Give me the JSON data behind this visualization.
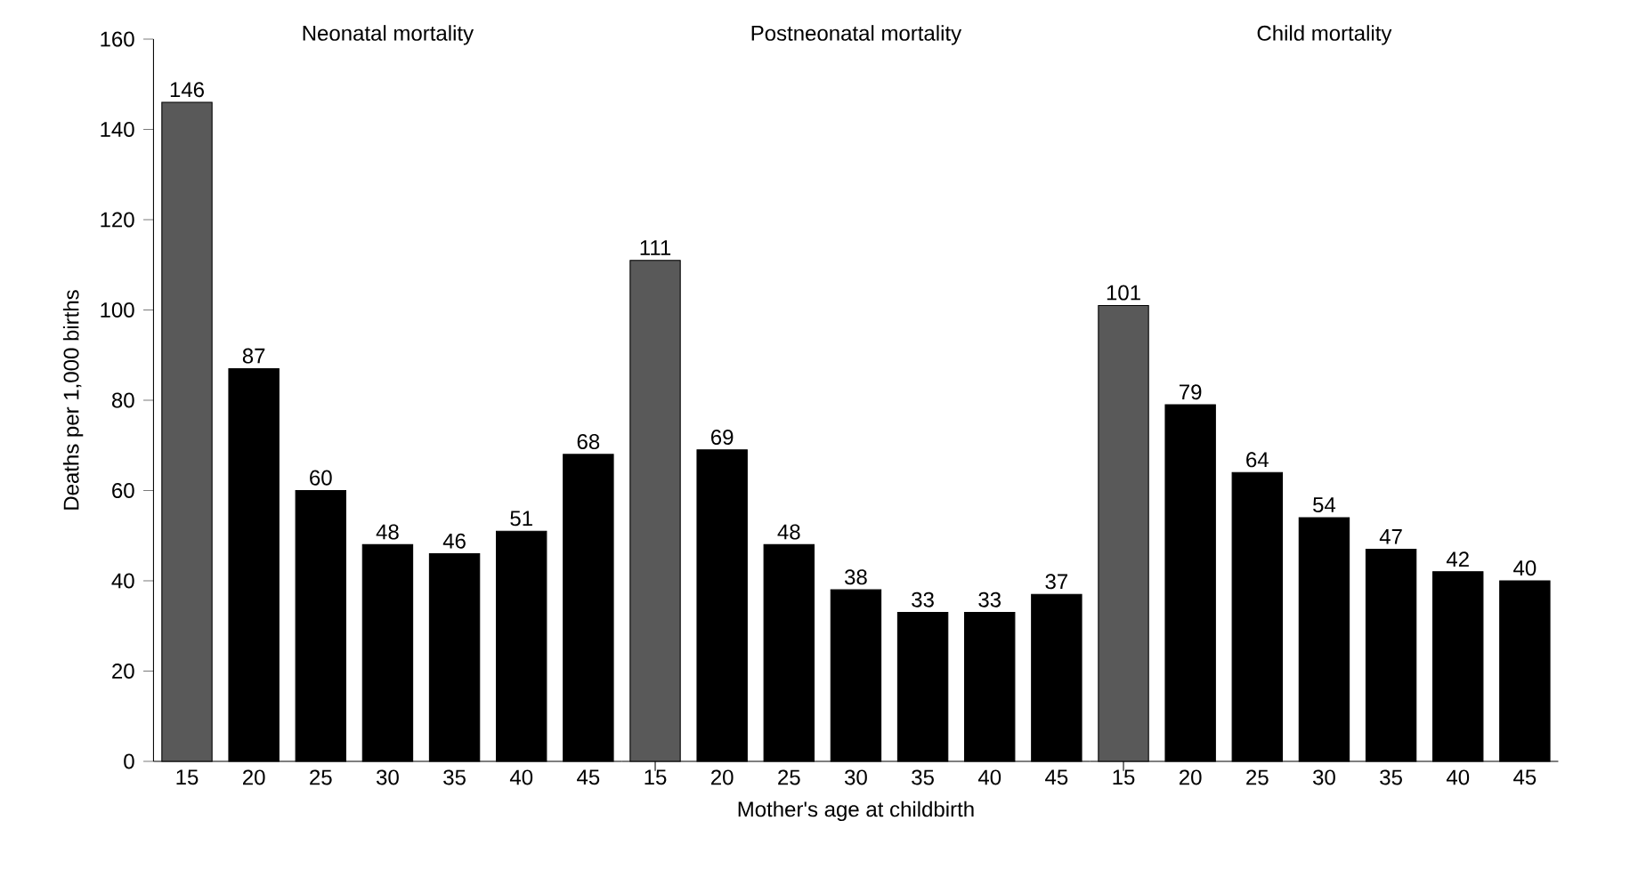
{
  "chart_data": [
    {
      "type": "bar",
      "title": "Neonatal mortality",
      "ylabel": "Deaths per 1,000 births",
      "categories": [
        "15",
        "20",
        "25",
        "30",
        "35",
        "40",
        "45"
      ],
      "values": [
        146,
        87,
        60,
        48,
        46,
        51,
        68
      ],
      "colors": [
        "#595959",
        "#000000",
        "#000000",
        "#000000",
        "#000000",
        "#000000",
        "#000000"
      ],
      "ylim": [
        0,
        160
      ],
      "yticks": [
        0,
        20,
        40,
        60,
        80,
        100,
        120,
        140,
        160
      ],
      "data_labels": true
    },
    {
      "type": "bar",
      "title": "Postneonatal mortality",
      "xlabel": "Mother's age at childbirth",
      "categories": [
        "15",
        "20",
        "25",
        "30",
        "35",
        "40",
        "45"
      ],
      "values": [
        111,
        69,
        48,
        38,
        33,
        33,
        37
      ],
      "colors": [
        "#595959",
        "#000000",
        "#000000",
        "#000000",
        "#000000",
        "#000000",
        "#000000"
      ],
      "ylim": [
        0,
        160
      ],
      "tick_labels": "x",
      "data_labels": true
    },
    {
      "type": "bar",
      "title": "Child mortality",
      "categories": [
        "15",
        "20",
        "25",
        "30",
        "35",
        "40",
        "45"
      ],
      "values": [
        101,
        79,
        64,
        54,
        47,
        42,
        40
      ],
      "colors": [
        "#595959",
        "#000000",
        "#000000",
        "#000000",
        "#000000",
        "#000000",
        "#000000"
      ],
      "ylim": [
        0,
        160
      ],
      "tick_labels": "x",
      "data_labels": true
    }
  ]
}
